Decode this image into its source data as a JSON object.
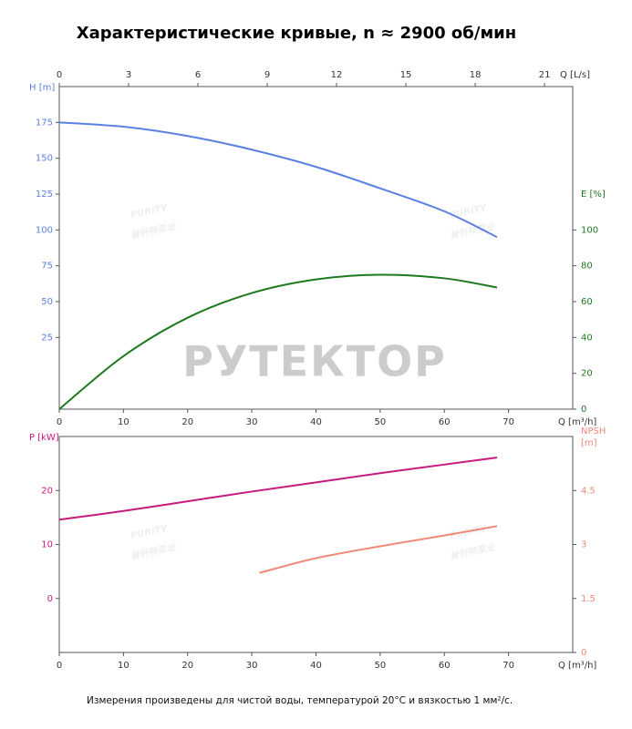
{
  "title": "Характеристические кривые, n ≈ 2900 об/мин",
  "footnote": "Измерения произведены для чистой воды, температурой 20°C и вязкостью 1 мм²/с.",
  "watermarks": {
    "main": "РУТЕКТОР",
    "brand": "PURITY",
    "brand_cn": "普轩特泵业"
  },
  "chart_data": [
    {
      "type": "line",
      "xlabel": "Q [m³/h]",
      "xlim": [
        0,
        80
      ],
      "xticks": [
        0,
        10,
        20,
        30,
        40,
        50,
        60,
        70
      ],
      "x2label": "Q [L/s]",
      "x2lim": [
        0,
        22.22
      ],
      "x2ticks": [
        0,
        3,
        6,
        9,
        12,
        15,
        18,
        21
      ],
      "ylabel": "H [m]",
      "ylim": [
        -25,
        200
      ],
      "yticks": [
        25,
        50,
        75,
        100,
        125,
        150,
        175
      ],
      "y2label": "E [%]",
      "y2lim": [
        0,
        180
      ],
      "y2ticks": [
        0,
        20,
        40,
        60,
        80,
        100
      ],
      "series": [
        {
          "name": "H",
          "color": "#5b80e4",
          "x": [
            0,
            10,
            20,
            30,
            40,
            50,
            60,
            68.2
          ],
          "values": [
            175,
            172,
            165.5,
            156,
            144,
            129,
            113,
            95
          ]
        },
        {
          "name": "E",
          "color": "#1f7a1f",
          "axis": "y2",
          "x": [
            0,
            10,
            20,
            30,
            40,
            50,
            60,
            68.2
          ],
          "values": [
            0,
            29.6,
            51,
            64.8,
            72.4,
            75,
            73,
            67.9
          ]
        }
      ]
    },
    {
      "type": "line",
      "xlabel": "Q [m³/h]",
      "xlim": [
        0,
        80
      ],
      "xticks": [
        0,
        10,
        20,
        30,
        40,
        50,
        60,
        70
      ],
      "ylabel": "P [kW]",
      "ylim": [
        -10,
        30
      ],
      "yticks": [
        0,
        10,
        20
      ],
      "y2label": [
        "NPSH",
        "[m]"
      ],
      "y2lim": [
        0,
        6
      ],
      "y2ticks": [
        0,
        1.5,
        3,
        4.5
      ],
      "series": [
        {
          "name": "P",
          "color": "#c8197f",
          "x": [
            0,
            10,
            20,
            30,
            40,
            50,
            60,
            68.2
          ],
          "values": [
            14.6,
            16.2,
            18,
            19.8,
            21.5,
            23.2,
            24.8,
            26.1
          ]
        },
        {
          "name": "NPSH",
          "color": "#f08878",
          "axis": "y2",
          "x": [
            31.2,
            40,
            50,
            60,
            68.2
          ],
          "values": [
            2.21,
            2.62,
            2.95,
            3.25,
            3.51
          ]
        }
      ]
    }
  ]
}
